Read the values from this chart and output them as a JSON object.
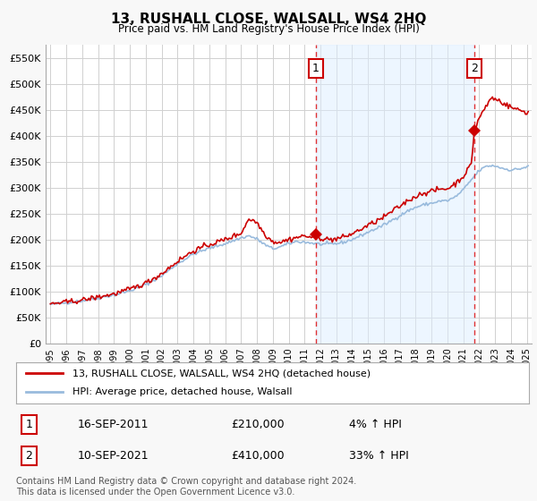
{
  "title": "13, RUSHALL CLOSE, WALSALL, WS4 2HQ",
  "subtitle": "Price paid vs. HM Land Registry's House Price Index (HPI)",
  "ylabel_ticks": [
    "£0",
    "£50K",
    "£100K",
    "£150K",
    "£200K",
    "£250K",
    "£300K",
    "£350K",
    "£400K",
    "£450K",
    "£500K",
    "£550K"
  ],
  "ytick_values": [
    0,
    50000,
    100000,
    150000,
    200000,
    250000,
    300000,
    350000,
    400000,
    450000,
    500000,
    550000
  ],
  "ylim": [
    0,
    575000
  ],
  "xlim_start": 1994.7,
  "xlim_end": 2025.3,
  "background_color": "#f8f8f8",
  "plot_bg_color": "#ffffff",
  "grid_color": "#d0d0d0",
  "sale1_x": 2011.71,
  "sale1_y": 210000,
  "sale1_label": "1",
  "sale1_date": "16-SEP-2011",
  "sale1_price": "£210,000",
  "sale1_hpi": "4% ↑ HPI",
  "sale2_x": 2021.69,
  "sale2_y": 410000,
  "sale2_label": "2",
  "sale2_date": "10-SEP-2021",
  "sale2_price": "£410,000",
  "sale2_hpi": "33% ↑ HPI",
  "dashed_line_color": "#dd0000",
  "dashed_line_alpha": 0.8,
  "shade_color": "#ddeeff",
  "shade_alpha": 0.5,
  "legend_line1": "13, RUSHALL CLOSE, WALSALL, WS4 2HQ (detached house)",
  "legend_line2": "HPI: Average price, detached house, Walsall",
  "footnote": "Contains HM Land Registry data © Crown copyright and database right 2024.\nThis data is licensed under the Open Government Licence v3.0.",
  "hpi_color": "#99bbdd",
  "price_color": "#cc0000",
  "xtick_years": [
    "1995",
    "1996",
    "1997",
    "1998",
    "1999",
    "2000",
    "2001",
    "2002",
    "2003",
    "2004",
    "2005",
    "2006",
    "2007",
    "2008",
    "2009",
    "2010",
    "2011",
    "2012",
    "2013",
    "2014",
    "2015",
    "2016",
    "2017",
    "2018",
    "2019",
    "2020",
    "2021",
    "2022",
    "2023",
    "2024",
    "2025"
  ]
}
